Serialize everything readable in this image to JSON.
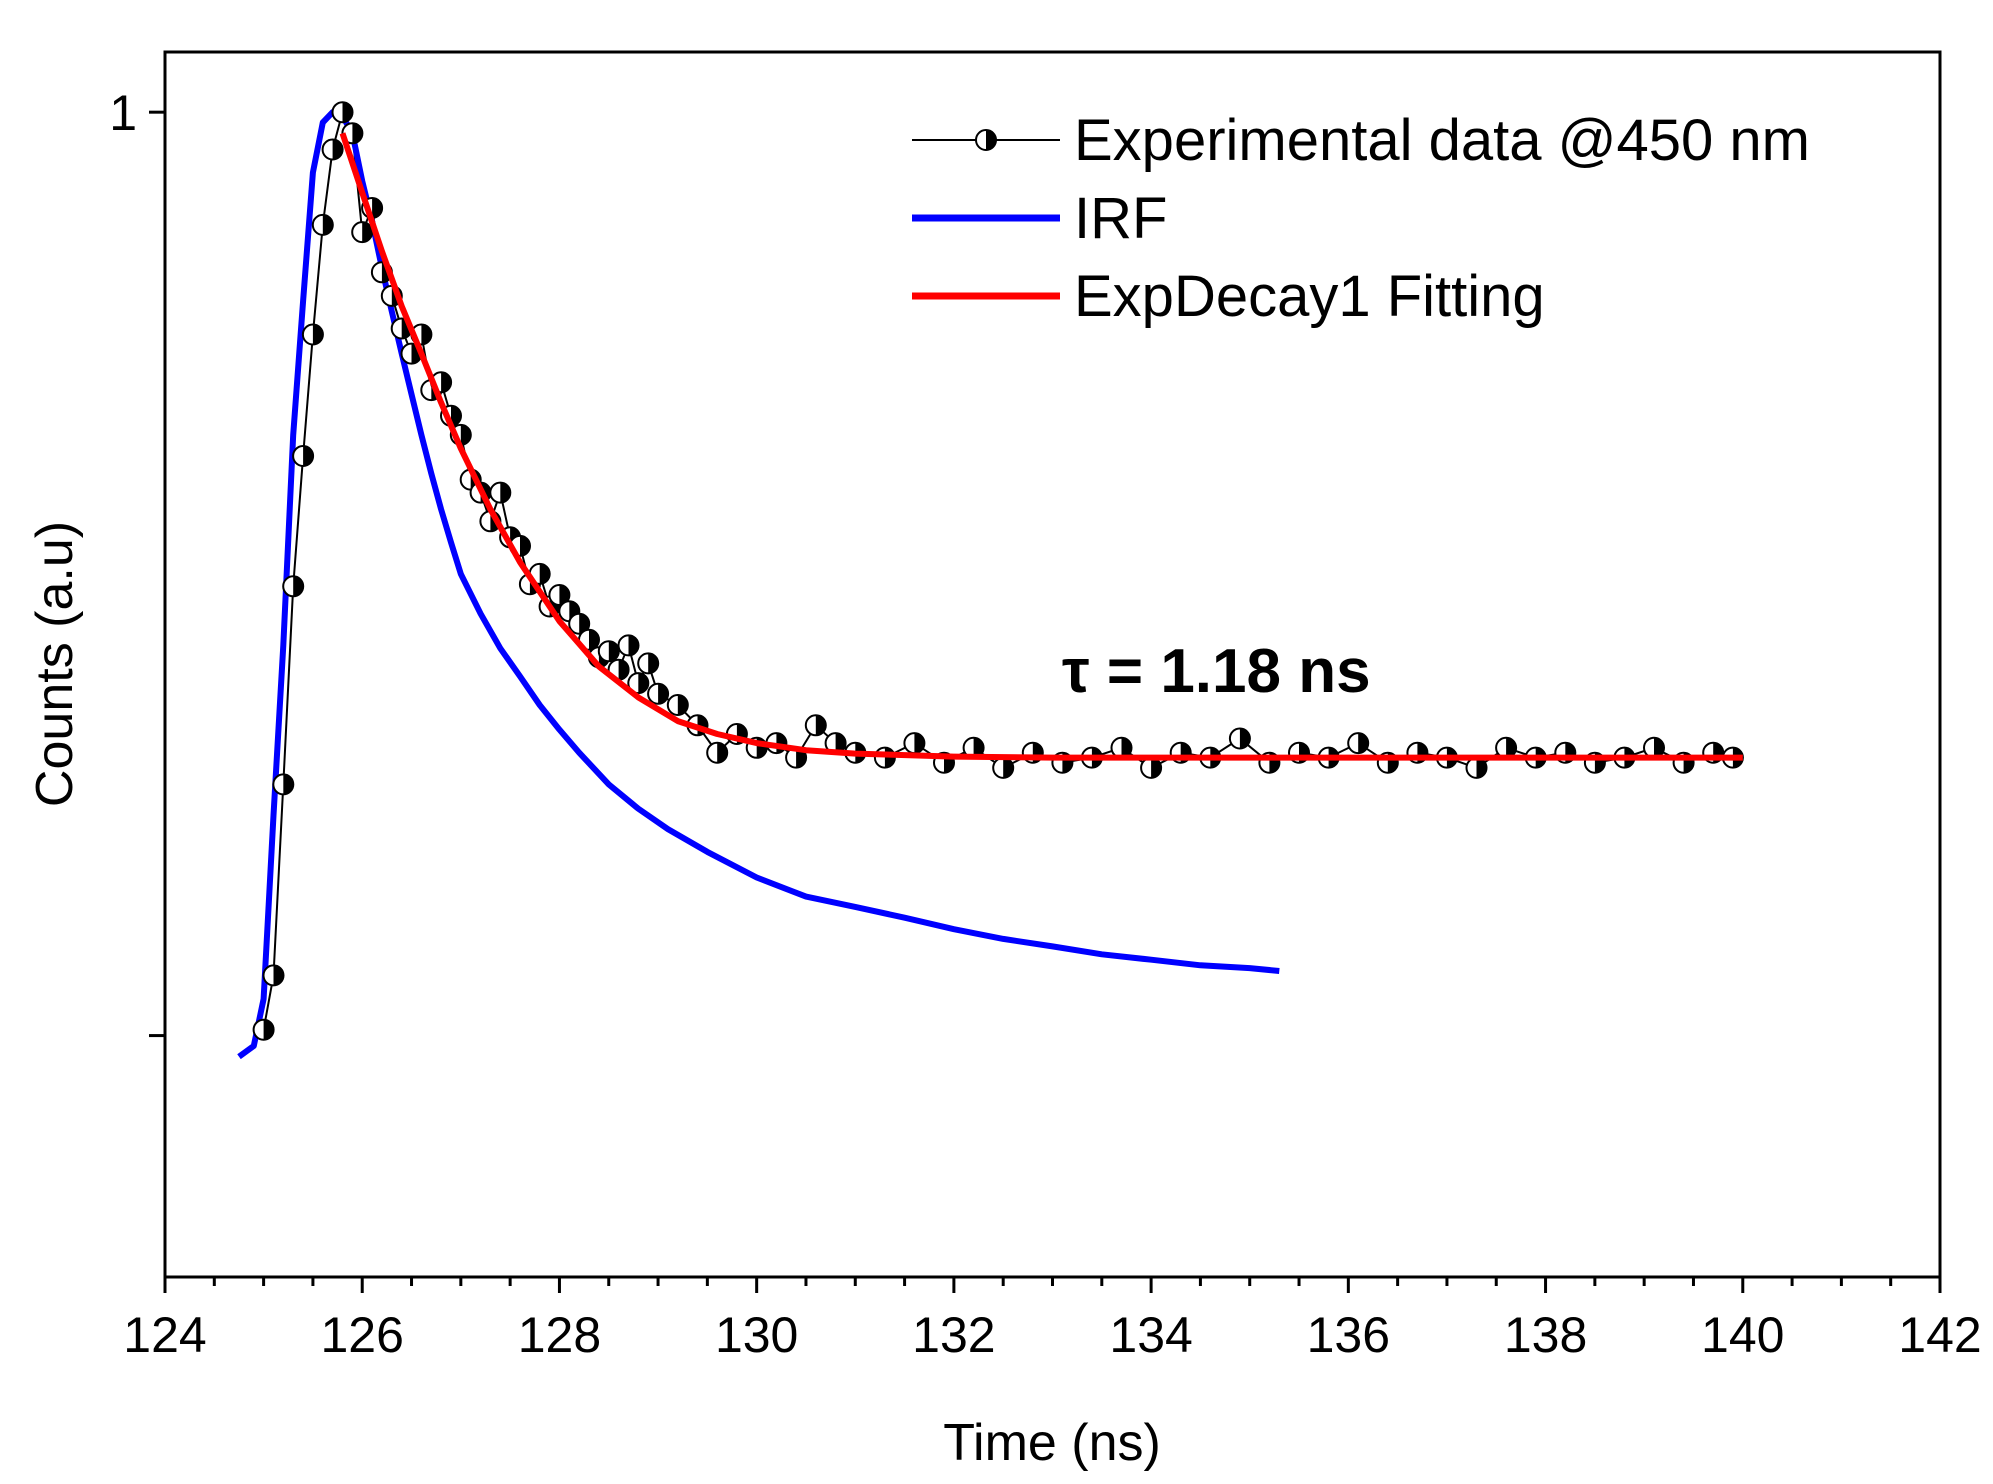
{
  "chart_data": {
    "type": "line",
    "title": "",
    "xlabel": "Time (ns)",
    "ylabel": "Counts (a.u)",
    "xlim": [
      124,
      142
    ],
    "ylim": [
      0.003,
      1.35
    ],
    "yscale": "log",
    "x_ticks": [
      124,
      126,
      128,
      130,
      132,
      134,
      136,
      138,
      140,
      142
    ],
    "x_tick_labels": [
      "124",
      "126",
      "128",
      "130",
      "132",
      "134",
      "136",
      "138",
      "140",
      "142"
    ],
    "y_ticks": [
      0.01,
      1
    ],
    "y_tick_labels": [
      "",
      "1"
    ],
    "grid": false,
    "legend_position": "top-right",
    "annotation": {
      "text": "τ = 1.18 ns",
      "color": "#ff0000",
      "x": 130.8,
      "y": 0.29
    },
    "series": [
      {
        "name": "Experimental data @450 nm",
        "kind": "line-with-half-filled-circles",
        "color": "#000000",
        "x": [
          125.0,
          125.1,
          125.2,
          125.3,
          125.4,
          125.5,
          125.6,
          125.7,
          125.8,
          125.9,
          126.0,
          126.1,
          126.2,
          126.3,
          126.4,
          126.5,
          126.6,
          126.7,
          126.8,
          126.9,
          127.0,
          127.1,
          127.2,
          127.3,
          127.4,
          127.5,
          127.6,
          127.7,
          127.8,
          127.9,
          128.0,
          128.1,
          128.2,
          128.3,
          128.4,
          128.5,
          128.6,
          128.7,
          128.8,
          128.9,
          129.0,
          129.2,
          129.4,
          129.6,
          129.8,
          130.0,
          130.2,
          130.4,
          130.6,
          130.8,
          131.0,
          131.3,
          131.6,
          131.9,
          132.2,
          132.5,
          132.8,
          133.1,
          133.4,
          133.7,
          134.0,
          134.3,
          134.6,
          134.9,
          135.2,
          135.5,
          135.8,
          136.1,
          136.4,
          136.7,
          137.0,
          137.3,
          137.6,
          137.9,
          138.2,
          138.5,
          138.8,
          139.1,
          139.4,
          139.7,
          139.9
        ],
        "y": [
          0.0103,
          0.0135,
          0.035,
          0.094,
          0.18,
          0.33,
          0.57,
          0.83,
          1.0,
          0.9,
          0.55,
          0.62,
          0.45,
          0.4,
          0.34,
          0.3,
          0.33,
          0.25,
          0.26,
          0.22,
          0.2,
          0.16,
          0.15,
          0.13,
          0.15,
          0.12,
          0.115,
          0.095,
          0.1,
          0.085,
          0.09,
          0.083,
          0.078,
          0.072,
          0.066,
          0.068,
          0.062,
          0.07,
          0.058,
          0.064,
          0.055,
          0.052,
          0.047,
          0.041,
          0.045,
          0.042,
          0.043,
          0.04,
          0.047,
          0.043,
          0.041,
          0.04,
          0.043,
          0.039,
          0.042,
          0.038,
          0.041,
          0.039,
          0.04,
          0.042,
          0.038,
          0.041,
          0.04,
          0.044,
          0.039,
          0.041,
          0.04,
          0.043,
          0.039,
          0.041,
          0.04,
          0.038,
          0.042,
          0.04,
          0.041,
          0.039,
          0.04,
          0.042,
          0.039,
          0.041,
          0.04
        ]
      },
      {
        "name": "IRF",
        "kind": "line",
        "color": "#0000ff",
        "x": [
          124.75,
          124.9,
          125.0,
          125.1,
          125.2,
          125.3,
          125.4,
          125.5,
          125.6,
          125.7,
          125.8,
          125.9,
          126.0,
          126.1,
          126.2,
          126.3,
          126.4,
          126.5,
          126.6,
          126.7,
          126.8,
          126.9,
          127.0,
          127.2,
          127.4,
          127.6,
          127.8,
          128.0,
          128.2,
          128.5,
          128.8,
          129.1,
          129.5,
          130.0,
          130.5,
          131.0,
          131.5,
          132.0,
          132.5,
          133.0,
          133.5,
          134.0,
          134.5,
          135.0,
          135.3
        ],
        "y": [
          0.009,
          0.0095,
          0.012,
          0.03,
          0.07,
          0.2,
          0.39,
          0.74,
          0.95,
          1.0,
          0.98,
          0.9,
          0.71,
          0.58,
          0.46,
          0.37,
          0.3,
          0.245,
          0.2,
          0.165,
          0.138,
          0.117,
          0.1,
          0.082,
          0.069,
          0.06,
          0.052,
          0.046,
          0.041,
          0.035,
          0.031,
          0.028,
          0.025,
          0.022,
          0.02,
          0.019,
          0.018,
          0.017,
          0.0162,
          0.0156,
          0.015,
          0.0146,
          0.0142,
          0.014,
          0.0138
        ]
      },
      {
        "name": "ExpDecay1 Fitting",
        "kind": "line",
        "color": "#ff0000",
        "x": [
          125.8,
          126.0,
          126.2,
          126.4,
          126.6,
          126.8,
          127.0,
          127.3,
          127.6,
          128.0,
          128.4,
          128.8,
          129.2,
          129.6,
          130.0,
          130.5,
          131.0,
          132.0,
          133.0,
          134.0,
          135.0,
          136.0,
          137.0,
          138.0,
          139.0,
          140.0
        ],
        "y": [
          0.9,
          0.67,
          0.5,
          0.38,
          0.3,
          0.235,
          0.187,
          0.138,
          0.106,
          0.079,
          0.063,
          0.054,
          0.048,
          0.045,
          0.043,
          0.0415,
          0.0408,
          0.0402,
          0.04,
          0.04,
          0.04,
          0.04,
          0.04,
          0.04,
          0.04,
          0.04
        ]
      }
    ]
  }
}
